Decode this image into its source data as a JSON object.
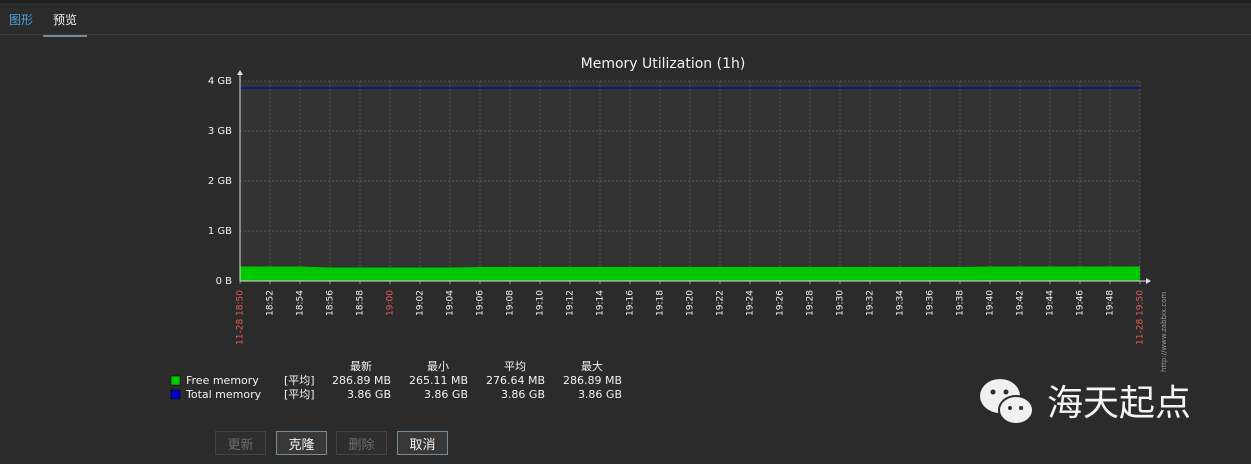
{
  "tabs": [
    "图形",
    "预览"
  ],
  "chart_data": {
    "type": "area",
    "title": "Memory Utilization (1h)",
    "x": [
      "11-28 18:50",
      "18:52",
      "18:54",
      "18:56",
      "18:58",
      "19:00",
      "19:02",
      "19:04",
      "19:06",
      "19:08",
      "19:10",
      "19:12",
      "19:14",
      "19:16",
      "19:18",
      "19:20",
      "19:22",
      "19:24",
      "19:26",
      "19:28",
      "19:30",
      "19:32",
      "19:34",
      "19:36",
      "19:38",
      "19:40",
      "19:42",
      "19:44",
      "19:46",
      "19:48",
      "11-28 19:50"
    ],
    "x_highlight": [
      0,
      5,
      30
    ],
    "x_highlight_color": "#e45959",
    "ylim": [
      0,
      4
    ],
    "yticks": [
      {
        "value": 0,
        "label": "0 B"
      },
      {
        "value": 1,
        "label": "1 GB"
      },
      {
        "value": 2,
        "label": "2 GB"
      },
      {
        "value": 3,
        "label": "3 GB"
      },
      {
        "value": 4,
        "label": "4 GB"
      }
    ],
    "grid": true,
    "series": [
      {
        "name": "Free memory",
        "color": "#00c800",
        "fill": true,
        "values": [
          0.29,
          0.29,
          0.29,
          0.27,
          0.27,
          0.27,
          0.27,
          0.27,
          0.28,
          0.28,
          0.28,
          0.28,
          0.28,
          0.28,
          0.28,
          0.28,
          0.28,
          0.28,
          0.28,
          0.28,
          0.28,
          0.28,
          0.28,
          0.28,
          0.28,
          0.29,
          0.29,
          0.29,
          0.29,
          0.29,
          0.29
        ]
      },
      {
        "name": "Total memory",
        "color": "#0000c8",
        "fill": false,
        "values": [
          3.86,
          3.86,
          3.86,
          3.86,
          3.86,
          3.86,
          3.86,
          3.86,
          3.86,
          3.86,
          3.86,
          3.86,
          3.86,
          3.86,
          3.86,
          3.86,
          3.86,
          3.86,
          3.86,
          3.86,
          3.86,
          3.86,
          3.86,
          3.86,
          3.86,
          3.86,
          3.86,
          3.86,
          3.86,
          3.86,
          3.86
        ]
      }
    ],
    "legend": {
      "headers": [
        "最新",
        "最小",
        "平均",
        "最大"
      ],
      "rows": [
        {
          "function": "[平均]",
          "stats": [
            "286.89 MB",
            "265.11 MB",
            "276.64 MB",
            "286.89 MB"
          ]
        },
        {
          "function": "[平均]",
          "stats": [
            "3.86 GB",
            "3.86 GB",
            "3.86 GB",
            "3.86 GB"
          ]
        }
      ]
    },
    "credit": "http://www.zabbix.com"
  },
  "buttons": [
    {
      "label": "更新",
      "enabled": false
    },
    {
      "label": "克隆",
      "enabled": true
    },
    {
      "label": "删除",
      "enabled": false
    },
    {
      "label": "取消",
      "enabled": true
    }
  ],
  "watermark": "海天起点"
}
